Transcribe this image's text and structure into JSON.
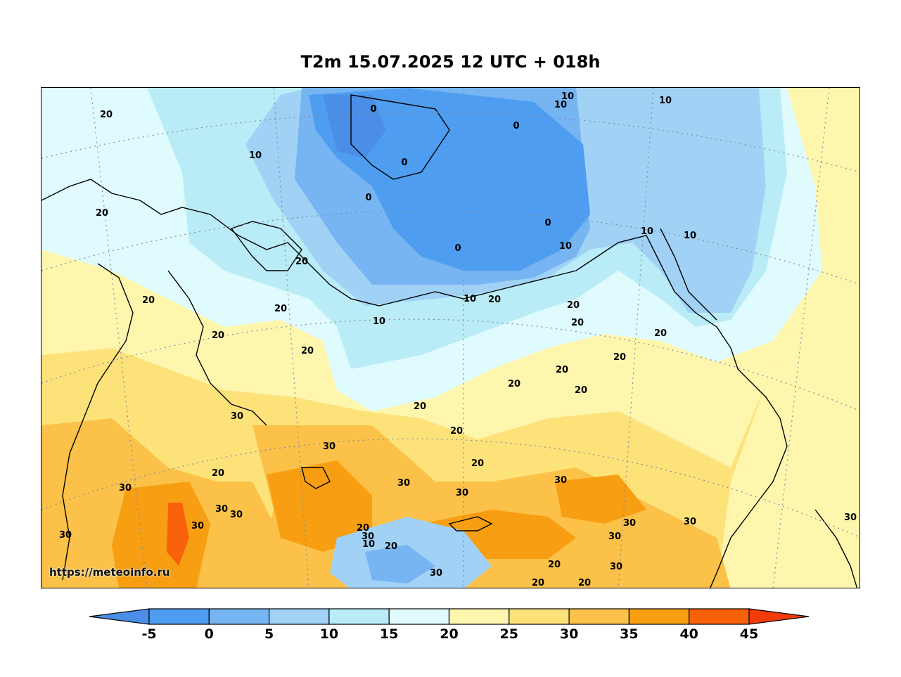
{
  "title": "T2m 15.07.2025 12 UTC + 018h",
  "watermark": "https://meteoinfo.ru",
  "colorbar": {
    "ticks": [
      "-5",
      "0",
      "5",
      "10",
      "15",
      "20",
      "25",
      "30",
      "35",
      "40",
      "45"
    ],
    "colors": {
      "below_-5": "#4a8ee8",
      "-5_0": "#4f9df0",
      "0_5": "#76b4f2",
      "5_10": "#a1d2f6",
      "10_15": "#b9ecf7",
      "15_20": "#e0fbfd",
      "20_25": "#fff6ae",
      "25_30": "#fde27a",
      "30_35": "#fbc148",
      "35_40": "#f79e12",
      "40_45": "#f8620a",
      "above_45": "#f23b0a"
    }
  },
  "contour_labels": [
    "20",
    "10",
    "0",
    "0",
    "0",
    "0",
    "10",
    "10",
    "10",
    "20",
    "20",
    "0",
    "0",
    "10",
    "10",
    "20",
    "20",
    "20",
    "20",
    "10",
    "10",
    "20",
    "20",
    "20",
    "10",
    "20",
    "20",
    "20",
    "20",
    "20",
    "20",
    "30",
    "30",
    "20",
    "30",
    "30",
    "30",
    "20",
    "30",
    "30",
    "30",
    "30",
    "20",
    "30",
    "20",
    "30",
    "10",
    "20",
    "30",
    "20",
    "30",
    "20",
    "20",
    "30",
    "30",
    "30",
    "30"
  ]
}
